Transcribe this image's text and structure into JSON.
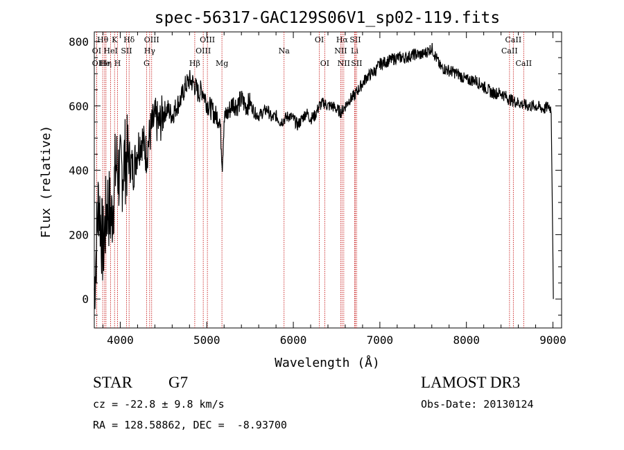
{
  "chart_data": {
    "type": "line",
    "title": "spec-56317-GAC129S06V1_sp02-119.fits",
    "xlabel": "Wavelength (Å)",
    "ylabel": "Flux (relative)",
    "xlim": [
      3700,
      9100
    ],
    "ylim": [
      -90,
      830
    ],
    "x_ticks": [
      4000,
      5000,
      6000,
      7000,
      8000,
      9000
    ],
    "y_ticks": [
      0,
      200,
      400,
      600,
      800
    ],
    "series": [
      {
        "name": "flux",
        "color": "#000000",
        "x": [
          3700,
          3750,
          3800,
          3850,
          3900,
          3950,
          4000,
          4050,
          4100,
          4150,
          4200,
          4250,
          4300,
          4350,
          4400,
          4450,
          4500,
          4550,
          4600,
          4650,
          4700,
          4750,
          4800,
          4850,
          4900,
          4950,
          5000,
          5050,
          5100,
          5150,
          5180,
          5200,
          5250,
          5300,
          5350,
          5400,
          5450,
          5500,
          5550,
          5600,
          5650,
          5700,
          5750,
          5800,
          5850,
          5900,
          5950,
          6000,
          6050,
          6100,
          6150,
          6200,
          6250,
          6300,
          6350,
          6400,
          6450,
          6500,
          6550,
          6600,
          6650,
          6700,
          6750,
          6800,
          6850,
          6900,
          6950,
          7000,
          7100,
          7200,
          7300,
          7400,
          7500,
          7550,
          7600,
          7650,
          7700,
          7800,
          7900,
          8000,
          8100,
          8200,
          8300,
          8400,
          8500,
          8600,
          8700,
          8800,
          8900,
          8950,
          8980,
          9000,
          9005
        ],
        "y": [
          30,
          320,
          150,
          300,
          250,
          420,
          380,
          430,
          440,
          400,
          470,
          500,
          450,
          520,
          560,
          540,
          580,
          590,
          570,
          600,
          620,
          660,
          680,
          670,
          640,
          650,
          610,
          590,
          570,
          560,
          420,
          560,
          580,
          610,
          600,
          620,
          600,
          610,
          580,
          570,
          580,
          590,
          560,
          570,
          550,
          560,
          570,
          560,
          540,
          560,
          580,
          560,
          570,
          600,
          610,
          600,
          600,
          590,
          580,
          600,
          620,
          630,
          650,
          670,
          690,
          700,
          710,
          730,
          740,
          750,
          750,
          760,
          760,
          770,
          780,
          750,
          720,
          710,
          700,
          680,
          680,
          660,
          640,
          640,
          620,
          610,
          600,
          600,
          590,
          600,
          590,
          130,
          0
        ]
      }
    ],
    "line_markers": [
      {
        "label": "Hθ",
        "x": 3797,
        "row": 1
      },
      {
        "label": "OI",
        "x": 3727,
        "row": 2
      },
      {
        "label": "OI",
        "x": 3727,
        "row": 3
      },
      {
        "label": "He",
        "x": 3819,
        "row": 3
      },
      {
        "label": "Hη",
        "x": 3835,
        "row": 3
      },
      {
        "label": "K",
        "x": 3934,
        "row": 1
      },
      {
        "label": "HeI",
        "x": 3889,
        "row": 2
      },
      {
        "label": "SII",
        "x": 4072,
        "row": 2
      },
      {
        "label": "H",
        "x": 3969,
        "row": 3
      },
      {
        "label": "Hδ",
        "x": 4102,
        "row": 1
      },
      {
        "label": "OIII",
        "x": 4363,
        "row": 1
      },
      {
        "label": "Hγ",
        "x": 4340,
        "row": 2
      },
      {
        "label": "G",
        "x": 4304,
        "row": 3
      },
      {
        "label": "OIII",
        "x": 5007,
        "row": 1
      },
      {
        "label": "OIII",
        "x": 4959,
        "row": 2
      },
      {
        "label": "Hβ",
        "x": 4861,
        "row": 3
      },
      {
        "label": "Mg",
        "x": 5175,
        "row": 3
      },
      {
        "label": "Na",
        "x": 5893,
        "row": 2
      },
      {
        "label": "OI",
        "x": 6300,
        "row": 1
      },
      {
        "label": "OI",
        "x": 6363,
        "row": 3
      },
      {
        "label": "Hα",
        "x": 6563,
        "row": 1
      },
      {
        "label": "SII",
        "x": 6716,
        "row": 1
      },
      {
        "label": "NII",
        "x": 6548,
        "row": 2
      },
      {
        "label": "Li",
        "x": 6708,
        "row": 2
      },
      {
        "label": "NII",
        "x": 6583,
        "row": 3
      },
      {
        "label": "SII",
        "x": 6731,
        "row": 3
      },
      {
        "label": "CaII",
        "x": 8542,
        "row": 1
      },
      {
        "label": "CaII",
        "x": 8498,
        "row": 2
      },
      {
        "label": "CaII",
        "x": 8662,
        "row": 3
      }
    ]
  },
  "info": {
    "object_class": "STAR",
    "subclass": "G7",
    "survey": "LAMOST DR3",
    "redshift": "cz = -22.8 ± 9.8 km/s",
    "obs_date": "Obs-Date: 20130124",
    "coords": "RA = 128.58862, DEC =  -8.93700"
  }
}
